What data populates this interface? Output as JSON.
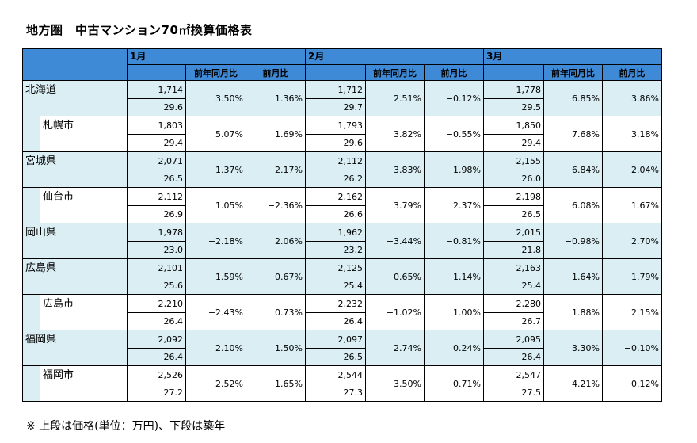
{
  "title": "地方圏　中古マンション70㎡換算価格表",
  "footnote": "※ 上段は価格(単位：万円)、下段は築年",
  "months": [
    "1月",
    "2月",
    "3月"
  ],
  "subheaders": {
    "yoy": "前年同月比",
    "mom": "前月比"
  },
  "rows": [
    {
      "name": "北海道",
      "level": "pref",
      "m": [
        {
          "price": "1,714",
          "age": "29.6",
          "yoy": "3.50%",
          "mom": "1.36%"
        },
        {
          "price": "1,712",
          "age": "29.7",
          "yoy": "2.51%",
          "mom": "−0.12%"
        },
        {
          "price": "1,778",
          "age": "29.5",
          "yoy": "6.85%",
          "mom": "3.86%"
        }
      ]
    },
    {
      "name": "札幌市",
      "level": "city",
      "m": [
        {
          "price": "1,803",
          "age": "29.4",
          "yoy": "5.07%",
          "mom": "1.69%"
        },
        {
          "price": "1,793",
          "age": "29.6",
          "yoy": "3.82%",
          "mom": "−0.55%"
        },
        {
          "price": "1,850",
          "age": "29.4",
          "yoy": "7.68%",
          "mom": "3.18%"
        }
      ]
    },
    {
      "name": "宮城県",
      "level": "pref",
      "m": [
        {
          "price": "2,071",
          "age": "26.5",
          "yoy": "1.37%",
          "mom": "−2.17%"
        },
        {
          "price": "2,112",
          "age": "26.2",
          "yoy": "3.83%",
          "mom": "1.98%"
        },
        {
          "price": "2,155",
          "age": "26.0",
          "yoy": "6.84%",
          "mom": "2.04%"
        }
      ]
    },
    {
      "name": "仙台市",
      "level": "city",
      "m": [
        {
          "price": "2,112",
          "age": "26.9",
          "yoy": "1.05%",
          "mom": "−2.36%"
        },
        {
          "price": "2,162",
          "age": "26.6",
          "yoy": "3.79%",
          "mom": "2.37%"
        },
        {
          "price": "2,198",
          "age": "26.5",
          "yoy": "6.08%",
          "mom": "1.67%"
        }
      ]
    },
    {
      "name": "岡山県",
      "level": "pref",
      "m": [
        {
          "price": "1,978",
          "age": "23.0",
          "yoy": "−2.18%",
          "mom": "2.06%"
        },
        {
          "price": "1,962",
          "age": "23.2",
          "yoy": "−3.44%",
          "mom": "−0.81%"
        },
        {
          "price": "2,015",
          "age": "21.8",
          "yoy": "−0.98%",
          "mom": "2.70%"
        }
      ]
    },
    {
      "name": "広島県",
      "level": "pref",
      "m": [
        {
          "price": "2,101",
          "age": "25.6",
          "yoy": "−1.59%",
          "mom": "0.67%"
        },
        {
          "price": "2,125",
          "age": "25.4",
          "yoy": "−0.65%",
          "mom": "1.14%"
        },
        {
          "price": "2,163",
          "age": "25.4",
          "yoy": "1.64%",
          "mom": "1.79%"
        }
      ]
    },
    {
      "name": "広島市",
      "level": "city",
      "m": [
        {
          "price": "2,210",
          "age": "26.4",
          "yoy": "−2.43%",
          "mom": "0.73%"
        },
        {
          "price": "2,232",
          "age": "26.4",
          "yoy": "−1.02%",
          "mom": "1.00%"
        },
        {
          "price": "2,280",
          "age": "26.7",
          "yoy": "1.88%",
          "mom": "2.15%"
        }
      ]
    },
    {
      "name": "福岡県",
      "level": "pref",
      "m": [
        {
          "price": "2,092",
          "age": "26.4",
          "yoy": "2.10%",
          "mom": "1.50%"
        },
        {
          "price": "2,097",
          "age": "26.5",
          "yoy": "2.74%",
          "mom": "0.24%"
        },
        {
          "price": "2,095",
          "age": "26.4",
          "yoy": "3.30%",
          "mom": "−0.10%"
        }
      ]
    },
    {
      "name": "福岡市",
      "level": "city",
      "m": [
        {
          "price": "2,526",
          "age": "27.2",
          "yoy": "2.52%",
          "mom": "1.65%"
        },
        {
          "price": "2,544",
          "age": "27.3",
          "yoy": "3.50%",
          "mom": "0.71%"
        },
        {
          "price": "2,547",
          "age": "27.5",
          "yoy": "4.21%",
          "mom": "0.12%"
        }
      ]
    }
  ]
}
